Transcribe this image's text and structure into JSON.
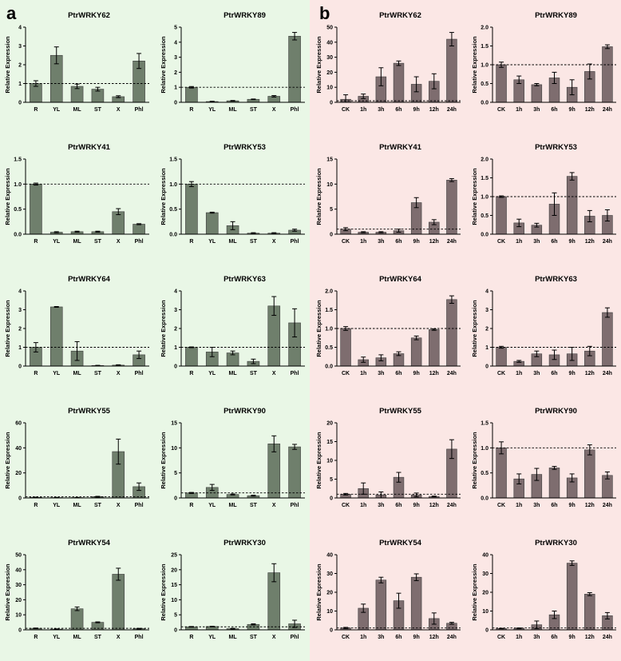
{
  "panels": [
    {
      "letter": "a",
      "bar_color": "#6f7f6c"
    },
    {
      "letter": "b",
      "bar_color": "#7e6d6f"
    }
  ],
  "chart_data": [
    {
      "panel": "a",
      "type": "bar",
      "title": "PtrWRKY62",
      "categories": [
        "R",
        "YL",
        "ML",
        "ST",
        "X",
        "Phl"
      ],
      "values": [
        1.0,
        2.5,
        0.85,
        0.7,
        0.3,
        2.2
      ],
      "errors": [
        0.15,
        0.45,
        0.12,
        0.1,
        0.05,
        0.4
      ],
      "ylabel": "Relative Expression",
      "ylim": [
        0,
        4
      ],
      "yticks": [
        0,
        1,
        2,
        3,
        4
      ],
      "reference_line": 1
    },
    {
      "panel": "a",
      "type": "bar",
      "title": "PtrWRKY89",
      "categories": [
        "R",
        "YL",
        "ML",
        "ST",
        "X",
        "Phl"
      ],
      "values": [
        1.0,
        0.05,
        0.1,
        0.2,
        0.4,
        4.4
      ],
      "errors": [
        0.05,
        0.02,
        0.02,
        0.02,
        0.05,
        0.25
      ],
      "ylabel": "Relative Expression",
      "ylim": [
        0,
        5
      ],
      "yticks": [
        0,
        1,
        2,
        3,
        4,
        5
      ],
      "reference_line": 1
    },
    {
      "panel": "b",
      "type": "bar",
      "title": "PtrWRKY62",
      "categories": [
        "CK",
        "1h",
        "3h",
        "6h",
        "9h",
        "12h",
        "24h"
      ],
      "values": [
        2,
        4,
        17,
        26,
        12,
        14,
        42
      ],
      "errors": [
        3,
        1.5,
        6,
        1.5,
        5,
        5,
        4.5
      ],
      "ylabel": "Relative Expression",
      "ylim": [
        0,
        50
      ],
      "yticks": [
        0,
        10,
        20,
        30,
        40,
        50
      ],
      "reference_line": 1
    },
    {
      "panel": "b",
      "type": "bar",
      "title": "PtrWRKY89",
      "categories": [
        "CK",
        "1h",
        "3h",
        "6h",
        "9h",
        "12h",
        "24h"
      ],
      "values": [
        1.0,
        0.6,
        0.47,
        0.65,
        0.4,
        0.82,
        1.48
      ],
      "errors": [
        0.07,
        0.1,
        0.03,
        0.15,
        0.2,
        0.2,
        0.05
      ],
      "ylabel": "Relative Expression",
      "ylim": [
        0,
        2.0
      ],
      "yticks": [
        0.0,
        0.5,
        1.0,
        1.5,
        2.0
      ],
      "reference_line": 1
    },
    {
      "panel": "a",
      "type": "bar",
      "title": "PtrWRKY41",
      "categories": [
        "R",
        "YL",
        "ML",
        "ST",
        "X",
        "Phl"
      ],
      "values": [
        1.0,
        0.04,
        0.05,
        0.05,
        0.45,
        0.2
      ],
      "errors": [
        0.02,
        0.01,
        0.01,
        0.01,
        0.06,
        0.01
      ],
      "ylabel": "Relative Expression",
      "ylim": [
        0,
        1.5
      ],
      "yticks": [
        0.0,
        0.5,
        1.0,
        1.5
      ],
      "reference_line": 1
    },
    {
      "panel": "a",
      "type": "bar",
      "title": "PtrWRKY53",
      "categories": [
        "R",
        "YL",
        "ML",
        "ST",
        "X",
        "Phl"
      ],
      "values": [
        1.0,
        0.43,
        0.17,
        0.02,
        0.02,
        0.08
      ],
      "errors": [
        0.05,
        0.01,
        0.08,
        0.01,
        0.01,
        0.02
      ],
      "ylabel": "Relative Expression",
      "ylim": [
        0,
        1.5
      ],
      "yticks": [
        0.0,
        0.5,
        1.0,
        1.5
      ],
      "reference_line": 1
    },
    {
      "panel": "b",
      "type": "bar",
      "title": "PtrWRKY41",
      "categories": [
        "CK",
        "1h",
        "3h",
        "6h",
        "9h",
        "12h",
        "24h"
      ],
      "values": [
        1.0,
        0.4,
        0.4,
        0.7,
        6.3,
        2.4,
        10.8
      ],
      "errors": [
        0.3,
        0.1,
        0.1,
        0.3,
        1.0,
        0.5,
        0.3
      ],
      "ylabel": "Relative Expression",
      "ylim": [
        0,
        15
      ],
      "yticks": [
        0,
        5,
        10,
        15
      ],
      "reference_line": 1
    },
    {
      "panel": "b",
      "type": "bar",
      "title": "PtrWRKY53",
      "categories": [
        "CK",
        "1h",
        "3h",
        "6h",
        "9h",
        "12h",
        "24h"
      ],
      "values": [
        1.0,
        0.3,
        0.24,
        0.8,
        1.54,
        0.48,
        0.5
      ],
      "errors": [
        0.02,
        0.1,
        0.05,
        0.3,
        0.1,
        0.15,
        0.15
      ],
      "ylabel": "Relative Expression",
      "ylim": [
        0,
        2.0
      ],
      "yticks": [
        0.0,
        0.5,
        1.0,
        1.5,
        2.0
      ],
      "reference_line": 1
    },
    {
      "panel": "a",
      "type": "bar",
      "title": "PtrWRKY64",
      "categories": [
        "R",
        "YL",
        "ML",
        "ST",
        "X",
        "Phl"
      ],
      "values": [
        1.0,
        3.15,
        0.8,
        0.03,
        0.05,
        0.6
      ],
      "errors": [
        0.25,
        0.02,
        0.5,
        0.01,
        0.02,
        0.2
      ],
      "ylabel": "Relative Expression",
      "ylim": [
        0,
        4
      ],
      "yticks": [
        0,
        1,
        2,
        3,
        4
      ],
      "reference_line": 1
    },
    {
      "panel": "a",
      "type": "bar",
      "title": "PtrWRKY63",
      "categories": [
        "R",
        "YL",
        "ML",
        "ST",
        "X",
        "Phl"
      ],
      "values": [
        1.0,
        0.75,
        0.7,
        0.25,
        3.2,
        2.3
      ],
      "errors": [
        0.02,
        0.25,
        0.1,
        0.12,
        0.5,
        0.75
      ],
      "ylabel": "Relative Expression",
      "ylim": [
        0,
        4
      ],
      "yticks": [
        0,
        1,
        2,
        3,
        4
      ],
      "reference_line": 1
    },
    {
      "panel": "b",
      "type": "bar",
      "title": "PtrWRKY64",
      "categories": [
        "CK",
        "1h",
        "3h",
        "6h",
        "9h",
        "12h",
        "24h"
      ],
      "values": [
        1.0,
        0.17,
        0.22,
        0.33,
        0.75,
        0.97,
        1.77
      ],
      "errors": [
        0.05,
        0.07,
        0.08,
        0.05,
        0.05,
        0.02,
        0.1
      ],
      "ylabel": "Relative Expression",
      "ylim": [
        0,
        2.0
      ],
      "yticks": [
        0.0,
        0.5,
        1.0,
        1.5,
        2.0
      ],
      "reference_line": 1
    },
    {
      "panel": "b",
      "type": "bar",
      "title": "PtrWRKY63",
      "categories": [
        "CK",
        "1h",
        "3h",
        "6h",
        "9h",
        "12h",
        "24h"
      ],
      "values": [
        1.0,
        0.25,
        0.65,
        0.6,
        0.65,
        0.8,
        2.85
      ],
      "errors": [
        0.05,
        0.05,
        0.15,
        0.25,
        0.35,
        0.25,
        0.25
      ],
      "ylabel": "Relative Expression",
      "ylim": [
        0,
        4
      ],
      "yticks": [
        0,
        1,
        2,
        3,
        4
      ],
      "reference_line": 1
    },
    {
      "panel": "a",
      "type": "bar",
      "title": "PtrWRKY55",
      "categories": [
        "R",
        "YL",
        "ML",
        "ST",
        "X",
        "Phl"
      ],
      "values": [
        0.5,
        0.3,
        0.3,
        1.0,
        37,
        9
      ],
      "errors": [
        0.1,
        0.1,
        0.1,
        0.3,
        10,
        3
      ],
      "ylabel": "Relative Expression",
      "ylim": [
        0,
        60
      ],
      "yticks": [
        0,
        20,
        40,
        60
      ],
      "reference_line": 1
    },
    {
      "panel": "a",
      "type": "bar",
      "title": "PtrWRKY90",
      "categories": [
        "R",
        "YL",
        "ML",
        "ST",
        "X",
        "Phl"
      ],
      "values": [
        1.0,
        2.1,
        0.7,
        0.45,
        10.8,
        10.2
      ],
      "errors": [
        0.1,
        0.6,
        0.1,
        0.1,
        1.6,
        0.5
      ],
      "ylabel": "Relative Expression",
      "ylim": [
        0,
        15
      ],
      "yticks": [
        0,
        5,
        10,
        15
      ],
      "reference_line": 1
    },
    {
      "panel": "b",
      "type": "bar",
      "title": "PtrWRKY55",
      "categories": [
        "CK",
        "1h",
        "3h",
        "6h",
        "9h",
        "12h",
        "24h"
      ],
      "values": [
        1.0,
        2.5,
        0.8,
        5.5,
        0.8,
        0.4,
        13
      ],
      "errors": [
        0.2,
        1.5,
        0.8,
        1.3,
        0.5,
        0.1,
        2.5
      ],
      "ylabel": "Relative Expression",
      "ylim": [
        0,
        20
      ],
      "yticks": [
        0,
        5,
        10,
        15,
        20
      ],
      "reference_line": 1
    },
    {
      "panel": "b",
      "type": "bar",
      "title": "PtrWRKY90",
      "categories": [
        "CK",
        "1h",
        "3h",
        "6h",
        "9h",
        "12h",
        "24h"
      ],
      "values": [
        1.0,
        0.38,
        0.47,
        0.6,
        0.4,
        0.96,
        0.45
      ],
      "errors": [
        0.12,
        0.1,
        0.12,
        0.03,
        0.08,
        0.1,
        0.07
      ],
      "ylabel": "Relative Expression",
      "ylim": [
        0,
        1.5
      ],
      "yticks": [
        0.0,
        0.5,
        1.0,
        1.5
      ],
      "reference_line": 1
    },
    {
      "panel": "a",
      "type": "bar",
      "title": "PtrWRKY54",
      "categories": [
        "R",
        "YL",
        "ML",
        "ST",
        "X",
        "Phl"
      ],
      "values": [
        1.0,
        0.5,
        14,
        5,
        37,
        0.8
      ],
      "errors": [
        0.2,
        0.1,
        1.2,
        0.3,
        4,
        0.2
      ],
      "ylabel": "Relative Expression",
      "ylim": [
        0,
        50
      ],
      "yticks": [
        0,
        10,
        20,
        30,
        40,
        50
      ],
      "reference_line": 1
    },
    {
      "panel": "a",
      "type": "bar",
      "title": "PtrWRKY30",
      "categories": [
        "R",
        "YL",
        "ML",
        "ST",
        "X",
        "Phl"
      ],
      "values": [
        1.0,
        1.1,
        0.4,
        1.8,
        19,
        2.0
      ],
      "errors": [
        0.1,
        0.1,
        0.1,
        0.2,
        3,
        1.2
      ],
      "ylabel": "Relative Expression",
      "ylim": [
        0,
        25
      ],
      "yticks": [
        0,
        5,
        10,
        15,
        20,
        25
      ],
      "reference_line": 1
    },
    {
      "panel": "b",
      "type": "bar",
      "title": "PtrWRKY54",
      "categories": [
        "CK",
        "1h",
        "3h",
        "6h",
        "9h",
        "12h",
        "24h"
      ],
      "values": [
        1.0,
        11.5,
        26.5,
        15.5,
        28,
        6,
        3.5
      ],
      "errors": [
        0.3,
        2.2,
        1.5,
        4,
        1.8,
        3,
        0.5
      ],
      "ylabel": "Relative Expression",
      "ylim": [
        0,
        40
      ],
      "yticks": [
        0,
        10,
        20,
        30,
        40
      ],
      "reference_line": 1
    },
    {
      "panel": "b",
      "type": "bar",
      "title": "PtrWRKY30",
      "categories": [
        "CK",
        "1h",
        "3h",
        "6h",
        "9h",
        "12h",
        "24h"
      ],
      "values": [
        0.7,
        0.8,
        2.7,
        8,
        35.5,
        19,
        7.5
      ],
      "errors": [
        0.1,
        0.2,
        2,
        2,
        1.2,
        0.8,
        1.7
      ],
      "ylabel": "Relative Expression",
      "ylim": [
        0,
        40
      ],
      "yticks": [
        0,
        10,
        20,
        30,
        40
      ],
      "reference_line": 1
    }
  ]
}
